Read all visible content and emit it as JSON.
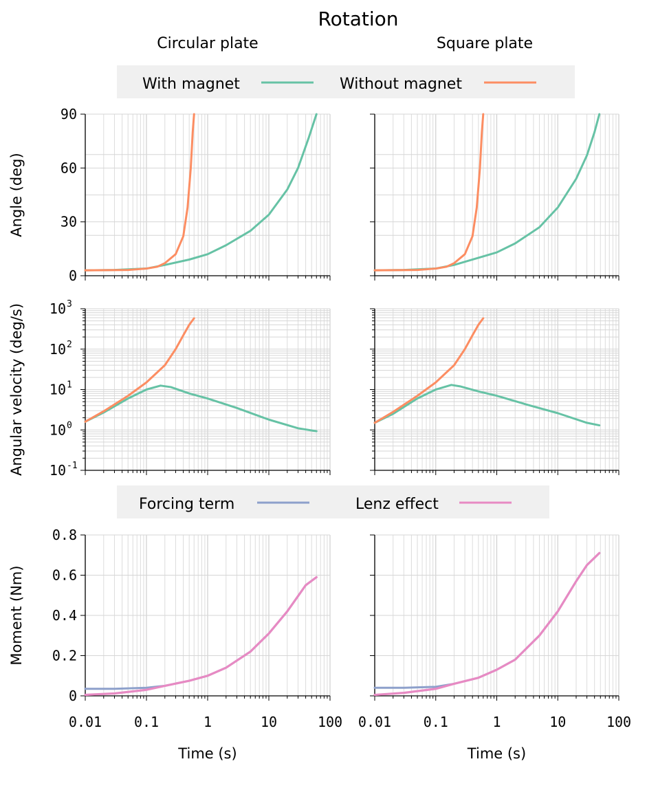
{
  "figure_title": "Rotation",
  "columns": [
    "Circular plate",
    "Square plate"
  ],
  "legends": {
    "top": [
      {
        "label": "With magnet",
        "color": "#66c2a5"
      },
      {
        "label": "Without magnet",
        "color": "#fc8d62"
      }
    ],
    "bottom": [
      {
        "label": "Forcing term",
        "color": "#8da0cb"
      },
      {
        "label": "Lenz effect",
        "color": "#e78ac3"
      }
    ]
  },
  "chart_data": [
    {
      "type": "line",
      "row": "angle",
      "plate": "Circular plate",
      "xlabel": "",
      "ylabel": "Angle (deg)",
      "xscale": "log",
      "xlim": [
        0.01,
        100
      ],
      "ylim": [
        0,
        90
      ],
      "yticks": [
        "0",
        "30",
        "60",
        "90"
      ],
      "series": [
        {
          "name": "With magnet",
          "color": "#66c2a5",
          "x": [
            0.01,
            0.03,
            0.1,
            0.2,
            0.5,
            1,
            2,
            5,
            10,
            20,
            30,
            45,
            60
          ],
          "y": [
            3,
            3.2,
            4,
            6,
            9,
            12,
            17,
            25,
            34,
            48,
            60,
            77,
            90
          ]
        },
        {
          "name": "Without magnet",
          "color": "#fc8d62",
          "x": [
            0.01,
            0.05,
            0.1,
            0.15,
            0.2,
            0.3,
            0.4,
            0.47,
            0.53,
            0.57,
            0.6
          ],
          "y": [
            3,
            3.2,
            4,
            5,
            7,
            12,
            22,
            38,
            60,
            80,
            90
          ]
        }
      ]
    },
    {
      "type": "line",
      "row": "angle",
      "plate": "Square plate",
      "xlabel": "",
      "ylabel": "",
      "xscale": "log",
      "xlim": [
        0.01,
        100
      ],
      "ylim": [
        0,
        90
      ],
      "yticks": [],
      "series": [
        {
          "name": "With magnet",
          "color": "#66c2a5",
          "x": [
            0.01,
            0.03,
            0.1,
            0.2,
            0.5,
            1,
            2,
            5,
            10,
            20,
            30,
            40,
            48
          ],
          "y": [
            3,
            3.2,
            4,
            6,
            10,
            13,
            18,
            27,
            38,
            54,
            67,
            80,
            90
          ]
        },
        {
          "name": "Without magnet",
          "color": "#fc8d62",
          "x": [
            0.01,
            0.05,
            0.1,
            0.15,
            0.2,
            0.3,
            0.4,
            0.47,
            0.53,
            0.57,
            0.6
          ],
          "y": [
            3,
            3.2,
            4,
            5,
            7,
            12,
            22,
            38,
            60,
            80,
            90
          ]
        }
      ]
    },
    {
      "type": "line",
      "row": "velocity",
      "plate": "Circular plate",
      "xlabel": "",
      "ylabel": "Angular velocity (deg/s)",
      "xscale": "log",
      "yscale": "log",
      "xlim": [
        0.01,
        100
      ],
      "ylim": [
        0.1,
        1000
      ],
      "yticks": [
        {
          "base": "10",
          "exp": "-1"
        },
        {
          "base": "10",
          "exp": "0"
        },
        {
          "base": "10",
          "exp": "1"
        },
        {
          "base": "10",
          "exp": "2"
        },
        {
          "base": "10",
          "exp": "3"
        }
      ],
      "series": [
        {
          "name": "With magnet",
          "color": "#66c2a5",
          "x": [
            0.01,
            0.02,
            0.05,
            0.1,
            0.17,
            0.25,
            0.5,
            1,
            3,
            10,
            30,
            60
          ],
          "y": [
            1.6,
            2.7,
            6,
            10,
            12.5,
            11.5,
            8,
            6,
            3.5,
            1.8,
            1.1,
            0.93
          ]
        },
        {
          "name": "Without magnet",
          "color": "#fc8d62",
          "x": [
            0.01,
            0.02,
            0.05,
            0.1,
            0.2,
            0.3,
            0.4,
            0.5,
            0.6
          ],
          "y": [
            1.6,
            2.9,
            7,
            15,
            40,
            100,
            220,
            400,
            580
          ]
        }
      ]
    },
    {
      "type": "line",
      "row": "velocity",
      "plate": "Square plate",
      "xlabel": "",
      "ylabel": "",
      "xscale": "log",
      "yscale": "log",
      "xlim": [
        0.01,
        100
      ],
      "ylim": [
        0.1,
        1000
      ],
      "yticks": [],
      "series": [
        {
          "name": "With magnet",
          "color": "#66c2a5",
          "x": [
            0.01,
            0.02,
            0.05,
            0.1,
            0.18,
            0.25,
            0.5,
            1,
            3,
            10,
            30,
            48
          ],
          "y": [
            1.5,
            2.5,
            6,
            10,
            13,
            12,
            9,
            7,
            4.3,
            2.6,
            1.5,
            1.3
          ]
        },
        {
          "name": "Without magnet",
          "color": "#fc8d62",
          "x": [
            0.01,
            0.02,
            0.05,
            0.1,
            0.2,
            0.3,
            0.4,
            0.5,
            0.6
          ],
          "y": [
            1.5,
            2.8,
            7,
            15,
            40,
            100,
            220,
            400,
            580
          ]
        }
      ]
    },
    {
      "type": "line",
      "row": "moment",
      "plate": "Circular plate",
      "xlabel": "Time (s)",
      "ylabel": "Moment (Nm)",
      "xscale": "log",
      "xlim": [
        0.01,
        100
      ],
      "ylim": [
        0,
        0.8
      ],
      "xticks": [
        "0.01",
        "0.1",
        "1",
        "10",
        "100"
      ],
      "yticks": [
        "0",
        "0.2",
        "0.4",
        "0.6",
        "0.8"
      ],
      "series": [
        {
          "name": "Forcing term",
          "color": "#8da0cb",
          "x": [
            0.01,
            0.03,
            0.1,
            0.2,
            0.5,
            1,
            2,
            5,
            10,
            20,
            40,
            60
          ],
          "y": [
            0.035,
            0.035,
            0.04,
            0.05,
            0.075,
            0.1,
            0.14,
            0.22,
            0.31,
            0.42,
            0.55,
            0.59
          ]
        },
        {
          "name": "Lenz effect",
          "color": "#e78ac3",
          "x": [
            0.01,
            0.03,
            0.1,
            0.2,
            0.5,
            1,
            2,
            5,
            10,
            20,
            40,
            60
          ],
          "y": [
            0.005,
            0.012,
            0.03,
            0.05,
            0.075,
            0.1,
            0.14,
            0.22,
            0.31,
            0.42,
            0.55,
            0.59
          ]
        }
      ]
    },
    {
      "type": "line",
      "row": "moment",
      "plate": "Square plate",
      "xlabel": "Time (s)",
      "ylabel": "",
      "xscale": "log",
      "xlim": [
        0.01,
        100
      ],
      "ylim": [
        0,
        0.8
      ],
      "xticks": [
        "0.01",
        "0.1",
        "1",
        "10",
        "100"
      ],
      "yticks": [],
      "series": [
        {
          "name": "Forcing term",
          "color": "#8da0cb",
          "x": [
            0.01,
            0.03,
            0.1,
            0.2,
            0.5,
            1,
            2,
            5,
            10,
            20,
            30,
            48
          ],
          "y": [
            0.04,
            0.04,
            0.045,
            0.06,
            0.09,
            0.13,
            0.18,
            0.3,
            0.42,
            0.57,
            0.65,
            0.71
          ]
        },
        {
          "name": "Lenz effect",
          "color": "#e78ac3",
          "x": [
            0.01,
            0.03,
            0.1,
            0.2,
            0.5,
            1,
            2,
            5,
            10,
            20,
            30,
            48
          ],
          "y": [
            0.005,
            0.015,
            0.035,
            0.06,
            0.09,
            0.13,
            0.18,
            0.3,
            0.42,
            0.57,
            0.65,
            0.71
          ]
        }
      ]
    }
  ]
}
